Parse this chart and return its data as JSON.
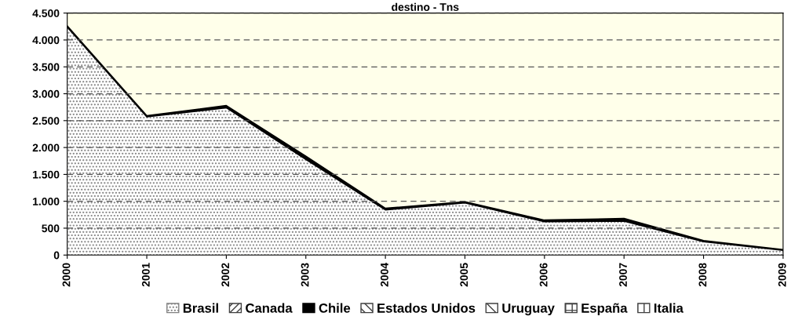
{
  "chart_data": {
    "type": "area",
    "stacked": true,
    "title": "destino - Tns",
    "categories": [
      "2000",
      "2001",
      "2002",
      "2003",
      "2004",
      "2005",
      "2006",
      "2007",
      "2008",
      "2009"
    ],
    "series": [
      {
        "name": "Brasil",
        "color": "#808080",
        "values": [
          4240,
          2570,
          2740,
          1780,
          840,
          970,
          620,
          630,
          250,
          90
        ]
      },
      {
        "name": "Canada",
        "color": "#404040",
        "values": [
          null,
          null,
          null,
          null,
          null,
          null,
          null,
          null,
          null,
          null
        ]
      },
      {
        "name": "Chile",
        "color": "#000000",
        "values": [
          20,
          20,
          40,
          60,
          30,
          20,
          30,
          50,
          20,
          10
        ]
      },
      {
        "name": "Estados Unidos",
        "color": "#404040",
        "values": [
          null,
          null,
          null,
          null,
          null,
          null,
          null,
          null,
          null,
          null
        ]
      },
      {
        "name": "Uruguay",
        "color": "#404040",
        "values": [
          null,
          null,
          null,
          null,
          null,
          null,
          null,
          null,
          null,
          null
        ]
      },
      {
        "name": "España",
        "color": "#404040",
        "values": [
          null,
          null,
          null,
          null,
          null,
          null,
          null,
          null,
          null,
          null
        ]
      },
      {
        "name": "Italia",
        "color": "#404040",
        "values": [
          null,
          null,
          null,
          null,
          null,
          null,
          null,
          null,
          null,
          null
        ]
      }
    ],
    "ylim": [
      0,
      4500
    ],
    "yticks": [
      0,
      500,
      {
        "value": 1000,
        "label": "1.000"
      },
      {
        "value": 1500,
        "label": "1.500"
      },
      {
        "value": 2000,
        "label": "2.000"
      },
      {
        "value": 2500,
        "label": "2.500"
      },
      {
        "value": 3000,
        "label": "3.000"
      },
      {
        "value": 3500,
        "label": "3.500"
      },
      {
        "value": 4000,
        "label": "4.000"
      },
      {
        "value": 4500,
        "label": "4.500"
      }
    ],
    "grid": "y",
    "line_style": "dashed",
    "legend": "bottom"
  }
}
